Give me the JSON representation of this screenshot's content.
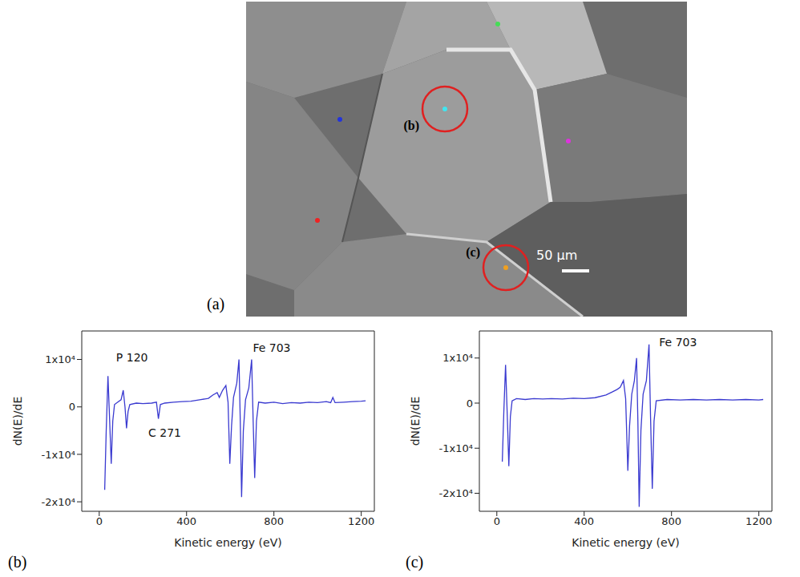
{
  "micrograph": {
    "panel": "(a)",
    "scale_bar": "50 μm",
    "spots": [
      {
        "color": "#44dd55"
      },
      {
        "color": "#40e6f0",
        "label": "(b)"
      },
      {
        "color": "#2233dd"
      },
      {
        "color": "#dd33dd"
      },
      {
        "color": "#ee2222"
      },
      {
        "color": "#f0a020",
        "label": "(c)"
      }
    ]
  },
  "chart_data": [
    {
      "type": "line",
      "panel": "(b)",
      "x_label": "Kinetic energy (eV)",
      "y_label": "dN(E)/dE",
      "color": "#3a3ad0",
      "x": [
        25,
        32,
        40,
        47,
        55,
        62,
        70,
        85,
        100,
        110,
        118,
        125,
        132,
        140,
        170,
        200,
        240,
        262,
        271,
        280,
        300,
        340,
        380,
        420,
        460,
        500,
        520,
        540,
        550,
        565,
        580,
        590,
        598,
        606,
        615,
        630,
        640,
        646,
        652,
        660,
        670,
        685,
        698,
        705,
        712,
        720,
        730,
        760,
        800,
        840,
        880,
        920,
        960,
        1000,
        1040,
        1060,
        1070,
        1080,
        1120,
        1160,
        1200,
        1220
      ],
      "values": [
        -17500,
        -5000,
        6500,
        -2000,
        -12000,
        -3000,
        500,
        1000,
        1500,
        3500,
        0,
        -4500,
        -1000,
        500,
        800,
        700,
        800,
        1000,
        -2500,
        500,
        800,
        1000,
        1100,
        1200,
        1500,
        1800,
        2500,
        3000,
        2000,
        3500,
        4500,
        1000,
        -12000,
        -4000,
        2000,
        5000,
        10000,
        -3000,
        -19000,
        -5000,
        1500,
        4000,
        10000,
        -3000,
        -15000,
        -3000,
        1000,
        800,
        1000,
        700,
        900,
        800,
        1000,
        900,
        1100,
        900,
        2000,
        900,
        1000,
        1100,
        1200,
        1300
      ],
      "xlim": [
        -80,
        1260
      ],
      "xticks": [
        0,
        400,
        800,
        1200
      ],
      "ylim": [
        -22000,
        16000
      ],
      "yticks": [
        {
          "value": 10000,
          "label": "1x10⁴"
        },
        0,
        {
          "value": -10000,
          "label": "-1x10⁴"
        },
        {
          "value": -20000,
          "label": "-2x10⁴"
        }
      ],
      "annotations": [
        {
          "text": "P 120",
          "x": 150,
          "y": 10500
        },
        {
          "text": "C 271",
          "x": 300,
          "y": -5500
        },
        {
          "text": "Fe 703",
          "x": 790,
          "y": 12500
        }
      ]
    },
    {
      "type": "line",
      "panel": "(c)",
      "x_label": "Kinetic energy (eV)",
      "y_label": "dN(E)/dE",
      "color": "#3a3ad0",
      "x": [
        25,
        32,
        40,
        48,
        55,
        62,
        70,
        90,
        130,
        170,
        210,
        250,
        300,
        350,
        400,
        450,
        500,
        530,
        550,
        565,
        580,
        590,
        600,
        608,
        618,
        630,
        640,
        646,
        652,
        660,
        670,
        685,
        697,
        704,
        712,
        720,
        730,
        780,
        840,
        900,
        960,
        1020,
        1080,
        1140,
        1200,
        1220
      ],
      "values": [
        -13000,
        -2000,
        8500,
        -3000,
        -14000,
        -3000,
        500,
        1000,
        800,
        1000,
        900,
        1000,
        900,
        1100,
        1000,
        1200,
        1800,
        2500,
        3000,
        3500,
        5000,
        1000,
        -15000,
        -5000,
        2000,
        5000,
        10000,
        -4000,
        -23000,
        -6000,
        2000,
        5000,
        13000,
        -3000,
        -19000,
        -4000,
        500,
        800,
        700,
        800,
        700,
        800,
        700,
        800,
        700,
        800
      ],
      "xlim": [
        -80,
        1260
      ],
      "xticks": [
        0,
        400,
        800,
        1200
      ],
      "ylim": [
        -24000,
        16000
      ],
      "yticks": [
        {
          "value": 10000,
          "label": "1x10⁴"
        },
        0,
        {
          "value": -10000,
          "label": "-1x10⁴"
        },
        {
          "value": -20000,
          "label": "-2x10⁴"
        }
      ],
      "annotations": [
        {
          "text": "Fe 703",
          "x": 830,
          "y": 13500
        }
      ]
    }
  ]
}
